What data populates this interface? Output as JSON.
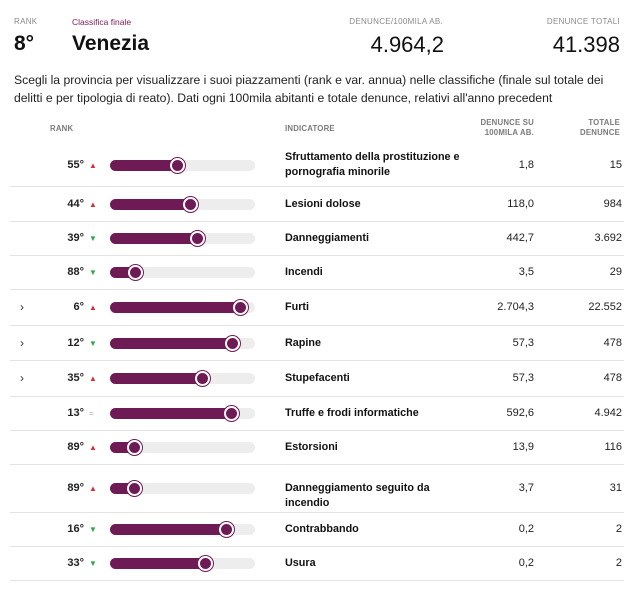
{
  "header": {
    "rank_label": "RANK",
    "classifica_label": "Classifica finale",
    "rank_value": "8°",
    "city": "Venezia",
    "denunce_label": "DENUNCE/100MILA AB.",
    "denunce_value": "4.964,2",
    "totali_label": "DENUNCE TOTALI",
    "totali_value": "41.398"
  },
  "intro": "Scegli la provincia per visualizzare i suoi piazzamenti (rank e var. annua) nelle classifiche (finale sul totale dei delitti e per tipologia di reato). Dati ogni 100mila abitanti e totale denunce, relativi all'anno precedent",
  "table": {
    "col_rank": "RANK",
    "col_indicatore": "INDICATORE",
    "col_denunce_1": "DENUNCE SU",
    "col_denunce_2": "100MILA AB.",
    "col_totale_1": "TOTALE",
    "col_totale_2": "DENUNCE"
  },
  "colors": {
    "accent": "#6e1b55",
    "up": "#d6303a",
    "down": "#2fa84f",
    "track": "#ededed"
  },
  "rows": [
    {
      "rank": "55°",
      "trend": "up",
      "bar_fraction": 0.47,
      "indicator": "Sfruttamento della prostituzione e pornografia minorile",
      "denunce": "1,8",
      "totale": "15",
      "expandable": false
    },
    {
      "rank": "44°",
      "trend": "up",
      "bar_fraction": 0.56,
      "indicator": "Lesioni dolose",
      "denunce": "118,0",
      "totale": "984",
      "expandable": false
    },
    {
      "rank": "39°",
      "trend": "down",
      "bar_fraction": 0.61,
      "indicator": "Danneggiamenti",
      "denunce": "442,7",
      "totale": "3.692",
      "expandable": false
    },
    {
      "rank": "88°",
      "trend": "down",
      "bar_fraction": 0.18,
      "indicator": "Incendi",
      "denunce": "3,5",
      "totale": "29",
      "expandable": false
    },
    {
      "rank": "6°",
      "trend": "up",
      "bar_fraction": 0.9,
      "indicator": "Furti",
      "denunce": "2.704,3",
      "totale": "22.552",
      "expandable": true
    },
    {
      "rank": "12°",
      "trend": "down",
      "bar_fraction": 0.85,
      "indicator": "Rapine",
      "denunce": "57,3",
      "totale": "478",
      "expandable": true
    },
    {
      "rank": "35°",
      "trend": "up",
      "bar_fraction": 0.64,
      "indicator": "Stupefacenti",
      "denunce": "57,3",
      "totale": "478",
      "expandable": true
    },
    {
      "rank": "13°",
      "trend": "eq",
      "bar_fraction": 0.84,
      "indicator": "Truffe e frodi informatiche",
      "denunce": "592,6",
      "totale": "4.942",
      "expandable": false
    },
    {
      "rank": "89°",
      "trend": "up",
      "bar_fraction": 0.17,
      "indicator": "Estorsioni",
      "denunce": "13,9",
      "totale": "116",
      "expandable": false
    },
    {
      "rank": "89°",
      "trend": "up",
      "bar_fraction": 0.17,
      "indicator": "Danneggiamento seguito da incendio",
      "denunce": "3,7",
      "totale": "31",
      "expandable": false
    },
    {
      "rank": "16°",
      "trend": "down",
      "bar_fraction": 0.81,
      "indicator": "Contrabbando",
      "denunce": "0,2",
      "totale": "2",
      "expandable": false
    },
    {
      "rank": "33°",
      "trend": "down",
      "bar_fraction": 0.66,
      "indicator": "Usura",
      "denunce": "0,2",
      "totale": "2",
      "expandable": false
    }
  ]
}
